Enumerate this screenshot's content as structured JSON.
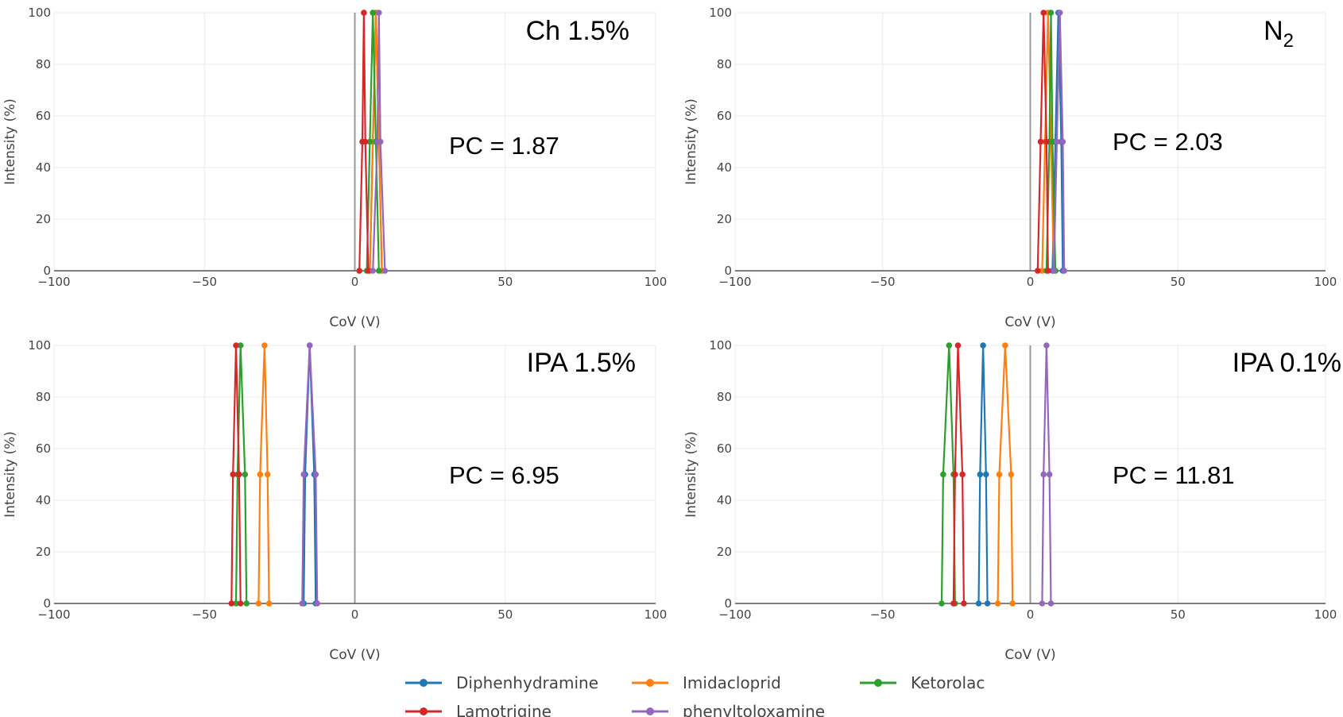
{
  "legend": {
    "entries": [
      {
        "name": "Diphenhydramine",
        "color": "#1f77b4"
      },
      {
        "name": "Imidacloprid",
        "color": "#ff7f0e"
      },
      {
        "name": "Ketorolac",
        "color": "#2ca02c"
      },
      {
        "name": "Lamotrigine",
        "color": "#d62728"
      },
      {
        "name": "phenyltoloxamine",
        "color": "#9467bd"
      }
    ]
  },
  "chart_data": [
    {
      "type": "line",
      "title": "Ch 1.5%",
      "annotation": "PC = 1.87",
      "xlabel": "CoV (V)",
      "ylabel": "Intensity (%)",
      "xlim": [
        -100,
        100
      ],
      "ylim": [
        0,
        100
      ],
      "xticks": [
        "−100",
        "−50",
        "0",
        "50",
        "100"
      ],
      "yticks": [
        "0",
        "20",
        "40",
        "60",
        "80",
        "100"
      ],
      "grid": true,
      "series": [
        {
          "name": "Diphenhydramine",
          "x": [
            5.0,
            6.0,
            7.0,
            8.0,
            9.0
          ],
          "y": [
            0,
            50,
            100,
            50,
            0
          ]
        },
        {
          "name": "Imidacloprid",
          "x": [
            5.0,
            6.0,
            7.0,
            8.0,
            9.0
          ],
          "y": [
            0,
            50,
            100,
            50,
            0
          ]
        },
        {
          "name": "Ketorolac",
          "x": [
            4.0,
            5.0,
            6.0,
            7.0,
            8.0
          ],
          "y": [
            0,
            50,
            100,
            50,
            0
          ]
        },
        {
          "name": "Lamotrigine",
          "x": [
            1.5,
            2.5,
            3.0,
            3.5,
            4.5
          ],
          "y": [
            0,
            50,
            100,
            50,
            0
          ]
        },
        {
          "name": "phenyltoloxamine",
          "x": [
            6.0,
            7.5,
            8.0,
            8.5,
            10.0
          ],
          "y": [
            0,
            50,
            100,
            50,
            0
          ]
        }
      ]
    },
    {
      "type": "line",
      "title": "N2",
      "annotation": "PC = 2.03",
      "xlabel": "CoV (V)",
      "ylabel": "Intensity (%)",
      "xlim": [
        -100,
        100
      ],
      "ylim": [
        0,
        100
      ],
      "xticks": [
        "−100",
        "−50",
        "0",
        "50",
        "100"
      ],
      "yticks": [
        "0",
        "20",
        "40",
        "60",
        "80",
        "100"
      ],
      "grid": true,
      "series": [
        {
          "name": "Diphenhydramine",
          "x": [
            7.5,
            8.5,
            9.5,
            10.5,
            11.0
          ],
          "y": [
            0,
            50,
            100,
            50,
            0
          ]
        },
        {
          "name": "Imidacloprid",
          "x": [
            4.0,
            5.0,
            6.0,
            7.0,
            8.0
          ],
          "y": [
            0,
            50,
            100,
            50,
            0
          ]
        },
        {
          "name": "Ketorolac",
          "x": [
            5.5,
            6.5,
            7.0,
            7.5,
            8.5
          ],
          "y": [
            0,
            50,
            100,
            50,
            0
          ]
        },
        {
          "name": "Lamotrigine",
          "x": [
            2.5,
            3.5,
            4.5,
            5.5,
            6.0
          ],
          "y": [
            0,
            50,
            100,
            50,
            0
          ]
        },
        {
          "name": "phenyltoloxamine",
          "x": [
            8.0,
            9.0,
            10.0,
            11.0,
            11.5
          ],
          "y": [
            0,
            50,
            100,
            50,
            0
          ]
        }
      ]
    },
    {
      "type": "line",
      "title": "IPA 1.5%",
      "annotation": "PC = 6.95",
      "xlabel": "CoV (V)",
      "ylabel": "Intensity (%)",
      "xlim": [
        -100,
        100
      ],
      "ylim": [
        0,
        100
      ],
      "xticks": [
        "−100",
        "−50",
        "0",
        "50",
        "100"
      ],
      "yticks": [
        "0",
        "20",
        "40",
        "60",
        "80",
        "100"
      ],
      "grid": true,
      "series": [
        {
          "name": "Diphenhydramine",
          "x": [
            -17.0,
            -16.5,
            -15.0,
            -13.5,
            -13.0
          ],
          "y": [
            0,
            50,
            100,
            50,
            0
          ]
        },
        {
          "name": "Imidacloprid",
          "x": [
            -32.0,
            -31.5,
            -30.0,
            -29.0,
            -28.5
          ],
          "y": [
            0,
            50,
            100,
            50,
            0
          ]
        },
        {
          "name": "Ketorolac",
          "x": [
            -39.5,
            -39.0,
            -38.0,
            -36.5,
            -36.0
          ],
          "y": [
            0,
            50,
            100,
            50,
            0
          ]
        },
        {
          "name": "Lamotrigine",
          "x": [
            -41.0,
            -40.5,
            -39.5,
            -38.5,
            -38.0
          ],
          "y": [
            0,
            50,
            100,
            50,
            0
          ]
        },
        {
          "name": "phenyltoloxamine",
          "x": [
            -17.5,
            -17.0,
            -15.0,
            -13.0,
            -12.5
          ],
          "y": [
            0,
            50,
            100,
            50,
            0
          ]
        }
      ]
    },
    {
      "type": "line",
      "title": "IPA 0.1%",
      "annotation": "PC = 11.81",
      "xlabel": "CoV (V)",
      "ylabel": "Intensity (%)",
      "xlim": [
        -100,
        100
      ],
      "ylim": [
        0,
        100
      ],
      "xticks": [
        "−100",
        "−50",
        "0",
        "50",
        "100"
      ],
      "yticks": [
        "0",
        "20",
        "40",
        "60",
        "80",
        "100"
      ],
      "grid": true,
      "series": [
        {
          "name": "Diphenhydramine",
          "x": [
            -17.5,
            -17.0,
            -16.0,
            -15.0,
            -14.5
          ],
          "y": [
            0,
            50,
            100,
            50,
            0
          ]
        },
        {
          "name": "Imidacloprid",
          "x": [
            -11.0,
            -10.5,
            -8.5,
            -6.5,
            -6.0
          ],
          "y": [
            0,
            50,
            100,
            50,
            0
          ]
        },
        {
          "name": "Ketorolac",
          "x": [
            -30.0,
            -29.5,
            -27.5,
            -26.0,
            -25.5
          ],
          "y": [
            0,
            50,
            100,
            50,
            0
          ]
        },
        {
          "name": "Lamotrigine",
          "x": [
            -26.0,
            -25.5,
            -24.5,
            -23.0,
            -22.5
          ],
          "y": [
            0,
            50,
            100,
            50,
            0
          ]
        },
        {
          "name": "phenyltoloxamine",
          "x": [
            4.0,
            4.5,
            5.5,
            6.5,
            7.0
          ],
          "y": [
            0,
            50,
            100,
            50,
            0
          ]
        }
      ]
    }
  ]
}
